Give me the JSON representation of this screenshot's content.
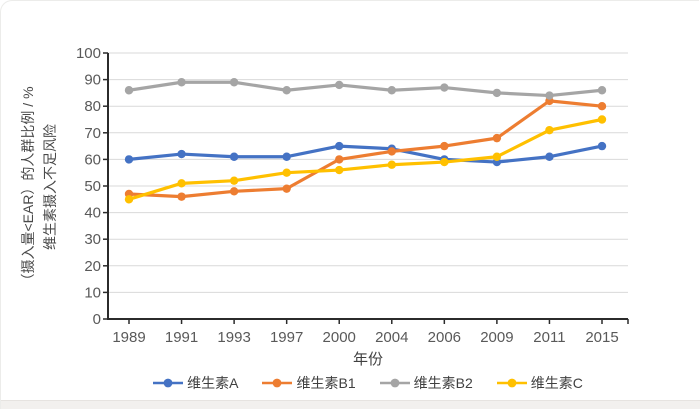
{
  "chart_data": {
    "type": "line",
    "title": "",
    "xlabel": "年份",
    "ylabel": "维生素摄入不足风险（摄入量<EAR）的人群比例 / %",
    "ylabel_lines": [
      "维生素摄入不足风险",
      "（摄入量<EAR）的人群比例 / %"
    ],
    "categories": [
      "1989",
      "1991",
      "1993",
      "1997",
      "2000",
      "2004",
      "2006",
      "2009",
      "2011",
      "2015"
    ],
    "yticks": [
      0,
      10,
      20,
      30,
      40,
      50,
      60,
      70,
      80,
      90,
      100
    ],
    "ylim": [
      0,
      100
    ],
    "grid": "horizontal",
    "legend_position": "bottom",
    "series": [
      {
        "name": "维生素A",
        "color": "#4472C4",
        "values": [
          60,
          62,
          61,
          61,
          65,
          64,
          60,
          59,
          61,
          65
        ]
      },
      {
        "name": "维生素B1",
        "color": "#ED7D31",
        "values": [
          47,
          46,
          48,
          49,
          60,
          63,
          65,
          68,
          82,
          80
        ]
      },
      {
        "name": "维生素B2",
        "color": "#A5A5A5",
        "values": [
          86,
          89,
          89,
          86,
          88,
          86,
          87,
          85,
          84,
          86
        ]
      },
      {
        "name": "维生素C",
        "color": "#FFC000",
        "values": [
          45,
          51,
          52,
          55,
          56,
          58,
          59,
          61,
          71,
          75
        ]
      }
    ],
    "colors": {
      "axis": "#2b2b2b",
      "grid": "#d9d9d9",
      "tick_text": "#595959",
      "label_text": "#404040"
    }
  }
}
